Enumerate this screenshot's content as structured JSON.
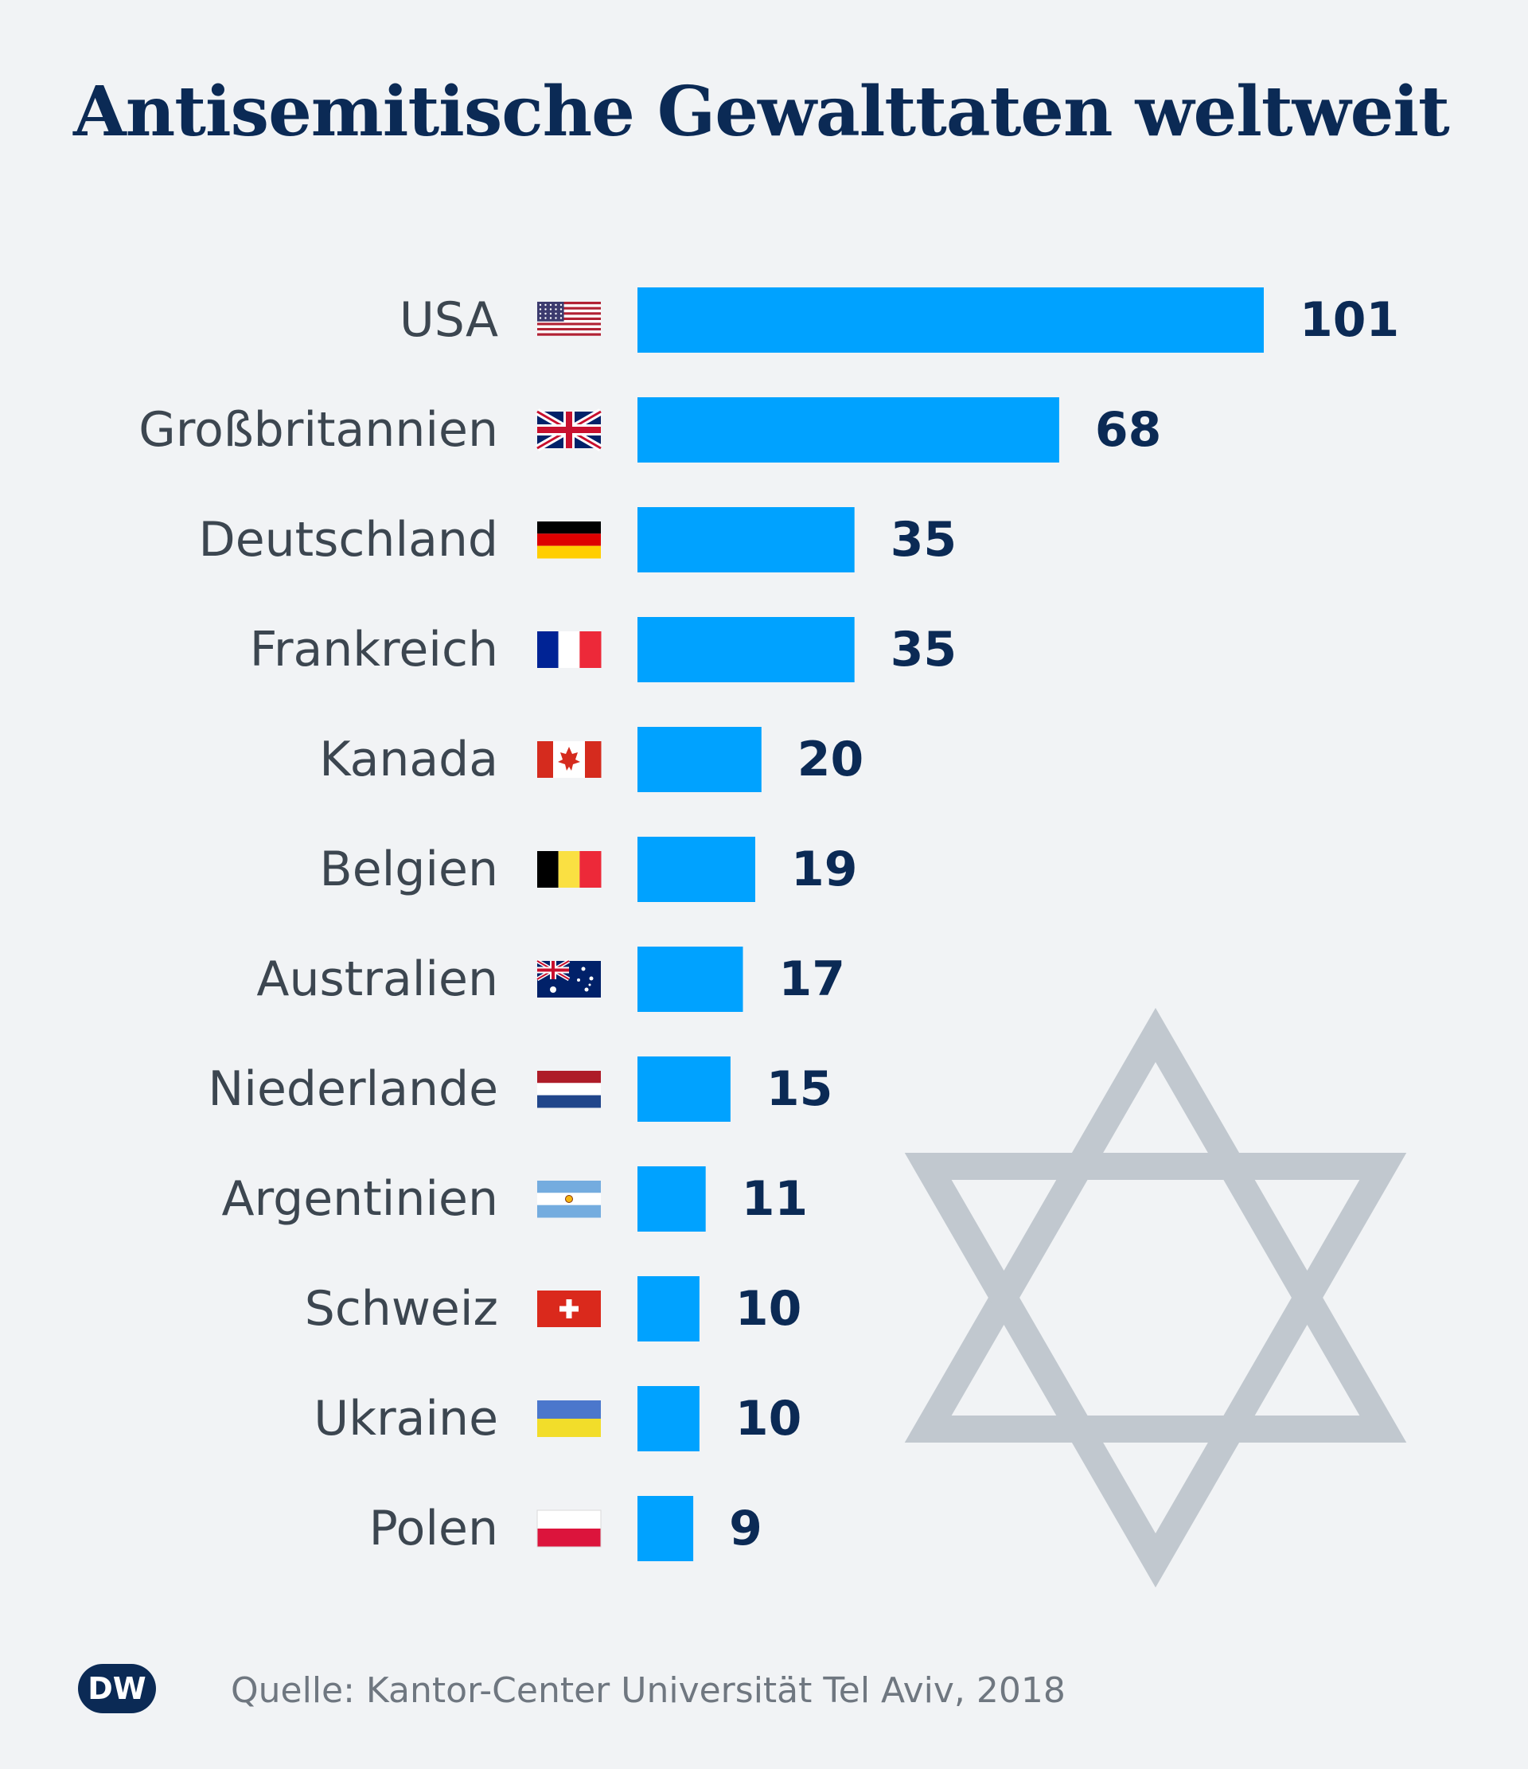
{
  "title": "Antisemitische Gewalttaten weltweit",
  "source": "Quelle: Kantor-Center Universität Tel Aviv, 2018",
  "logo_text": "DW",
  "colors": {
    "bar": "#00a2ff",
    "title": "#0b2a55",
    "label": "#3c4650",
    "value": "#0b2a55",
    "star": "#c1c8cf",
    "background": "#f1f3f5"
  },
  "chart_data": {
    "type": "bar",
    "orientation": "horizontal",
    "title": "Antisemitische Gewalttaten weltweit",
    "categories": [
      "USA",
      "Großbritannien",
      "Deutschland",
      "Frankreich",
      "Kanada",
      "Belgien",
      "Australien",
      "Niederlande",
      "Argentinien",
      "Schweiz",
      "Ukraine",
      "Polen"
    ],
    "values": [
      101,
      68,
      35,
      35,
      20,
      19,
      17,
      15,
      11,
      10,
      10,
      9
    ],
    "flags": [
      "us-flag-icon",
      "gb-flag-icon",
      "de-flag-icon",
      "fr-flag-icon",
      "ca-flag-icon",
      "be-flag-icon",
      "au-flag-icon",
      "nl-flag-icon",
      "ar-flag-icon",
      "ch-flag-icon",
      "ua-flag-icon",
      "pl-flag-icon"
    ],
    "xlim": [
      0,
      101
    ],
    "grid": false,
    "legend": "none",
    "xlabel": "",
    "ylabel": ""
  },
  "decoration": {
    "icon": "star-of-david-icon"
  }
}
